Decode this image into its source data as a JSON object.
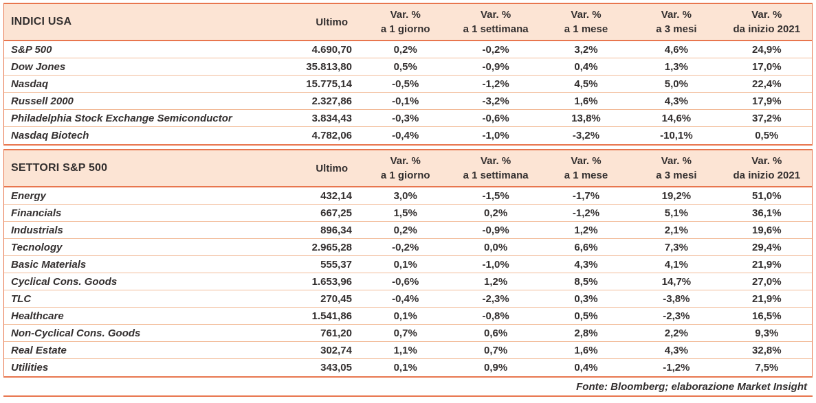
{
  "chart_data": [
    {
      "type": "table",
      "section_title": "INDICI USA",
      "value_header": "Ultimo",
      "var_headers": [
        [
          "Var. %",
          "a 1 giorno"
        ],
        [
          "Var. %",
          "a 1 settimana"
        ],
        [
          "Var. %",
          "a 1 mese"
        ],
        [
          "Var. %",
          "a 3 mesi"
        ],
        [
          "Var. %",
          "da inizio 2021"
        ]
      ],
      "rows": [
        {
          "name": "S&P 500",
          "ultimo": "4.690,70",
          "vars": [
            "0,2%",
            "-0,2%",
            "3,2%",
            "4,6%",
            "24,9%"
          ]
        },
        {
          "name": "Dow Jones",
          "ultimo": "35.813,80",
          "vars": [
            "0,5%",
            "-0,9%",
            "0,4%",
            "1,3%",
            "17,0%"
          ]
        },
        {
          "name": "Nasdaq",
          "ultimo": "15.775,14",
          "vars": [
            "-0,5%",
            "-1,2%",
            "4,5%",
            "5,0%",
            "22,4%"
          ]
        },
        {
          "name": "Russell 2000",
          "ultimo": "2.327,86",
          "vars": [
            "-0,1%",
            "-3,2%",
            "1,6%",
            "4,3%",
            "17,9%"
          ]
        },
        {
          "name": "Philadelphia Stock Exchange Semiconductor",
          "ultimo": "3.834,43",
          "vars": [
            "-0,3%",
            "-0,6%",
            "13,8%",
            "14,6%",
            "37,2%"
          ]
        },
        {
          "name": "Nasdaq Biotech",
          "ultimo": "4.782,06",
          "vars": [
            "-0,4%",
            "-1,0%",
            "-3,2%",
            "-10,1%",
            "0,5%"
          ]
        }
      ]
    },
    {
      "type": "table",
      "section_title": "SETTORI S&P 500",
      "value_header": "Ultimo",
      "var_headers": [
        [
          "Var. %",
          "a 1 giorno"
        ],
        [
          "Var. %",
          "a 1 settimana"
        ],
        [
          "Var. %",
          "a 1 mese"
        ],
        [
          "Var. %",
          "a 3 mesi"
        ],
        [
          "Var. %",
          "da inizio 2021"
        ]
      ],
      "rows": [
        {
          "name": "Energy",
          "ultimo": "432,14",
          "vars": [
            "3,0%",
            "-1,5%",
            "-1,7%",
            "19,2%",
            "51,0%"
          ]
        },
        {
          "name": "Financials",
          "ultimo": "667,25",
          "vars": [
            "1,5%",
            "0,2%",
            "-1,2%",
            "5,1%",
            "36,1%"
          ]
        },
        {
          "name": "Industrials",
          "ultimo": "896,34",
          "vars": [
            "0,2%",
            "-0,9%",
            "1,2%",
            "2,1%",
            "19,6%"
          ]
        },
        {
          "name": "Tecnology",
          "ultimo": "2.965,28",
          "vars": [
            "-0,2%",
            "0,0%",
            "6,6%",
            "7,3%",
            "29,4%"
          ]
        },
        {
          "name": "Basic Materials",
          "ultimo": "555,37",
          "vars": [
            "0,1%",
            "-1,0%",
            "4,3%",
            "4,1%",
            "21,9%"
          ]
        },
        {
          "name": "Cyclical Cons. Goods",
          "ultimo": "1.653,96",
          "vars": [
            "-0,6%",
            "1,2%",
            "8,5%",
            "14,7%",
            "27,0%"
          ]
        },
        {
          "name": "TLC",
          "ultimo": "270,45",
          "vars": [
            "-0,4%",
            "-2,3%",
            "0,3%",
            "-3,8%",
            "21,9%"
          ]
        },
        {
          "name": "Healthcare",
          "ultimo": "1.541,86",
          "vars": [
            "0,1%",
            "-0,8%",
            "0,5%",
            "-2,3%",
            "16,5%"
          ]
        },
        {
          "name": "Non-Cyclical Cons. Goods",
          "ultimo": "761,20",
          "vars": [
            "0,7%",
            "0,6%",
            "2,8%",
            "2,2%",
            "9,3%"
          ]
        },
        {
          "name": "Real Estate",
          "ultimo": "302,74",
          "vars": [
            "1,1%",
            "0,7%",
            "1,6%",
            "4,3%",
            "32,8%"
          ]
        },
        {
          "name": "Utilities",
          "ultimo": "343,05",
          "vars": [
            "0,1%",
            "0,9%",
            "0,4%",
            "-1,2%",
            "7,5%"
          ]
        }
      ]
    }
  ],
  "footer": "Fonte: Bloomberg; elaborazione Market Insight",
  "colors": {
    "header_bg": "#fce4d4",
    "line_strong": "#e8764e",
    "line_thin": "#f2bb98",
    "text": "#332f2f"
  }
}
